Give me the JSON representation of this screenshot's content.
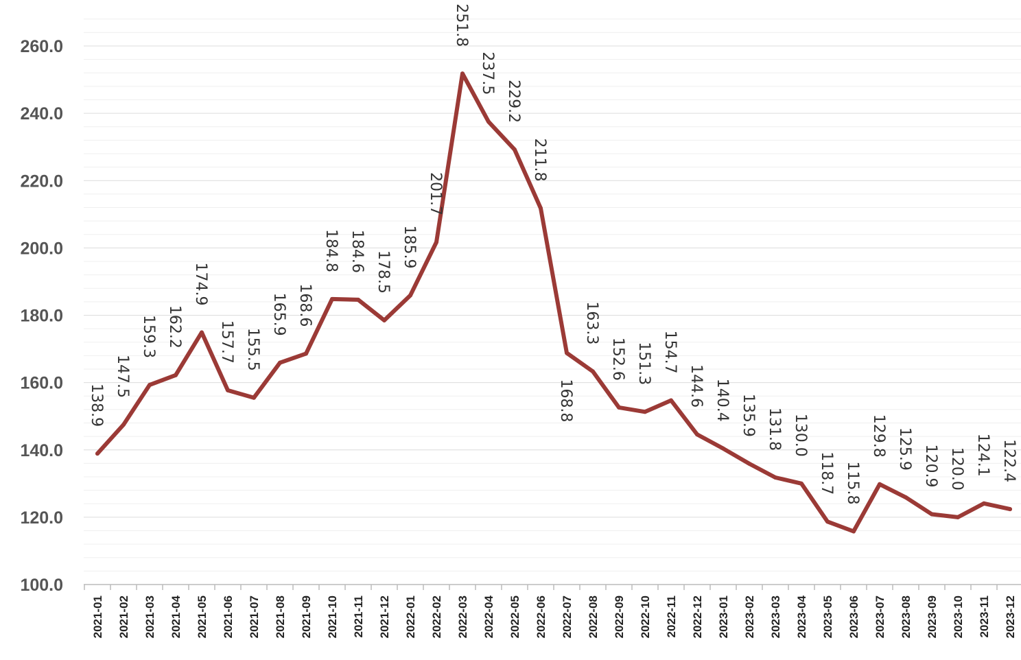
{
  "chart_data": {
    "type": "line",
    "title": "",
    "xlabel": "",
    "ylabel": "",
    "ylim": [
      100,
      260
    ],
    "ytick_values": [
      100,
      120,
      140,
      160,
      180,
      200,
      220,
      240,
      260
    ],
    "ytick_labels": [
      "100.0",
      "120.0",
      "140.0",
      "160.0",
      "180.0",
      "200.0",
      "220.0",
      "240.0",
      "260.0"
    ],
    "grid": true,
    "legend": "none",
    "line_color": "#9b3a36",
    "categories": [
      "2021-01",
      "2021-02",
      "2021-03",
      "2021-04",
      "2021-05",
      "2021-06",
      "2021-07",
      "2021-08",
      "2021-09",
      "2021-10",
      "2021-11",
      "2021-12",
      "2022-01",
      "2022-02",
      "2022-03",
      "2022-04",
      "2022-05",
      "2022-06",
      "2022-07",
      "2022-08",
      "2022-09",
      "2022-10",
      "2022-11",
      "2022-12",
      "2023-01",
      "2023-02",
      "2023-03",
      "2023-04",
      "2023-05",
      "2023-06",
      "2023-07",
      "2023-08",
      "2023-09",
      "2023-10",
      "2023-11",
      "2023-12"
    ],
    "values": [
      138.9,
      147.5,
      159.3,
      162.2,
      174.9,
      157.7,
      155.5,
      165.9,
      168.6,
      184.8,
      184.6,
      178.5,
      185.9,
      201.7,
      251.8,
      237.5,
      229.2,
      211.8,
      168.8,
      163.3,
      152.6,
      151.3,
      154.7,
      144.6,
      140.4,
      135.9,
      131.8,
      130.0,
      118.7,
      115.8,
      129.8,
      125.9,
      120.9,
      120.0,
      124.1,
      122.4
    ],
    "data_labels": [
      "138.9",
      "147.5",
      "159.3",
      "162.2",
      "174.9",
      "157.7",
      "155.5",
      "165.9",
      "168.6",
      "184.8",
      "184.6",
      "178.5",
      "185.9",
      "201.7",
      "251.8",
      "237.5",
      "229.2",
      "211.8",
      "168.8",
      "163.3",
      "152.6",
      "151.3",
      "154.7",
      "144.6",
      "140.4",
      "135.9",
      "131.8",
      "130.0",
      "118.7",
      "115.8",
      "129.8",
      "125.9",
      "120.9",
      "120.0",
      "124.1",
      "122.4"
    ]
  }
}
